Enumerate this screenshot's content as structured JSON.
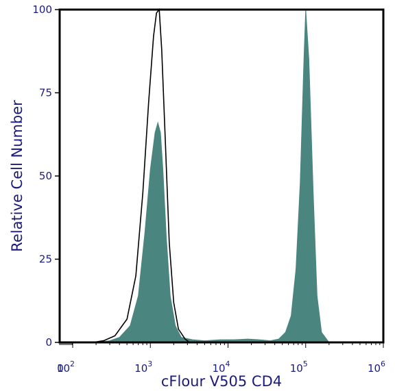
{
  "chart_data": {
    "type": "area",
    "xlabel": "cFlour V505 CD4",
    "ylabel": "Relative Cell Number",
    "x_scale": "log",
    "xlim": [
      0,
      1000000
    ],
    "ylim": [
      0,
      100
    ],
    "y_ticks": [
      {
        "value": 0,
        "label": "0"
      },
      {
        "value": 25,
        "label": "25"
      },
      {
        "value": 50,
        "label": "50"
      },
      {
        "value": 75,
        "label": "75"
      },
      {
        "value": 100,
        "label": "100"
      }
    ],
    "x_ticks": [
      {
        "value": 0,
        "label": "0"
      },
      {
        "value": 100,
        "base": "10",
        "exp": "2"
      },
      {
        "value": 1000,
        "base": "10",
        "exp": "3"
      },
      {
        "value": 10000,
        "base": "10",
        "exp": "4"
      },
      {
        "value": 100000,
        "base": "10",
        "exp": "5"
      },
      {
        "value": 1000000,
        "base": "10",
        "exp": "6"
      }
    ],
    "grid": false,
    "colors": {
      "filled": "#4a8580",
      "outline": "#000000",
      "text": "#1a1a80"
    },
    "series": [
      {
        "style": "filled",
        "x": [
          200,
          300,
          400,
          550,
          700,
          850,
          1000,
          1150,
          1250,
          1350,
          1450,
          1600,
          1800,
          2100,
          2500,
          3500,
          5000,
          8000,
          12000,
          18000,
          25000,
          35000,
          45000,
          55000,
          65000,
          75000,
          85000,
          95000,
          100000,
          110000,
          125000,
          140000,
          160000,
          200000
        ],
        "y": [
          0,
          0.5,
          1.5,
          5,
          14,
          33,
          52,
          63,
          66,
          63,
          52,
          32,
          14,
          5,
          1.5,
          0.8,
          0.5,
          0.8,
          0.8,
          1,
          0.8,
          0.5,
          1,
          3,
          8,
          22,
          48,
          85,
          100,
          85,
          45,
          14,
          3,
          0
        ]
      },
      {
        "style": "outline",
        "x": [
          180,
          250,
          350,
          500,
          650,
          800,
          950,
          1100,
          1200,
          1300,
          1400,
          1550,
          1750,
          2000,
          2300,
          2800,
          3200
        ],
        "y": [
          0,
          0.5,
          2,
          7,
          20,
          45,
          72,
          92,
          99,
          100,
          88,
          62,
          30,
          12,
          4,
          1,
          0
        ]
      }
    ]
  }
}
